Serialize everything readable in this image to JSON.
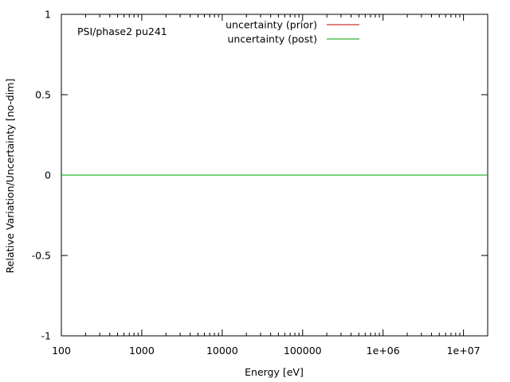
{
  "chart_data": {
    "type": "line",
    "annotation": "PSI/phase2 pu241",
    "xlabel": "Energy [eV]",
    "ylabel": "Relative Variation/Uncertainty [no-dim]",
    "x_scale": "log",
    "xlim": [
      100,
      20000000
    ],
    "ylim": [
      -1,
      1
    ],
    "x_ticks": [
      {
        "value": 100,
        "label": "100"
      },
      {
        "value": 1000,
        "label": "1000"
      },
      {
        "value": 10000,
        "label": "10000"
      },
      {
        "value": 100000,
        "label": "100000"
      },
      {
        "value": 1000000,
        "label": "1e+06"
      },
      {
        "value": 10000000,
        "label": "1e+07"
      }
    ],
    "y_ticks": [
      {
        "value": 1,
        "label": "1"
      },
      {
        "value": 0.5,
        "label": "0.5"
      },
      {
        "value": 0,
        "label": "0"
      },
      {
        "value": -0.5,
        "label": "-0.5"
      },
      {
        "value": -1,
        "label": "-1"
      }
    ],
    "grid": false,
    "legend_position": "top-center",
    "series": [
      {
        "name": "uncertainty (prior)",
        "color": "#c00000",
        "x": [
          100,
          20000000
        ],
        "y": [
          0,
          0
        ]
      },
      {
        "name": "uncertainty (post)",
        "color": "#00a000",
        "x": [
          100,
          20000000
        ],
        "y": [
          0,
          0
        ]
      }
    ]
  }
}
